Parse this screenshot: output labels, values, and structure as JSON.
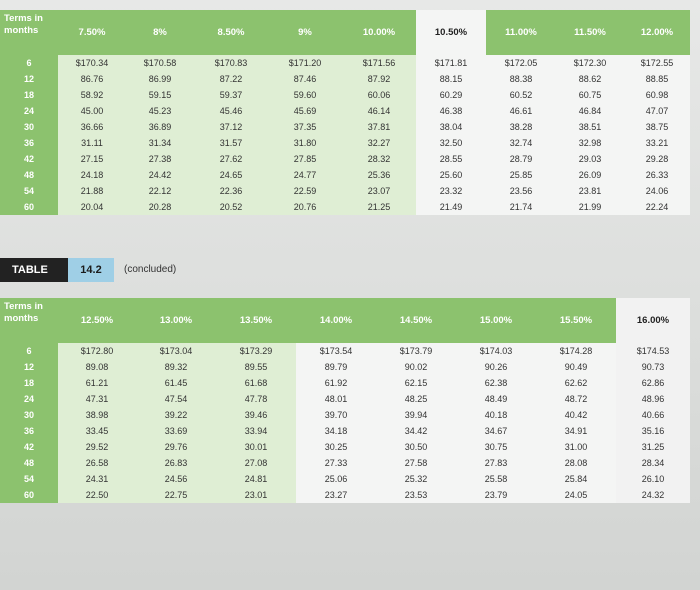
{
  "top_table": {
    "terms_header": "Terms in months",
    "rates": [
      "7.50%",
      "8%",
      "8.50%",
      "9%",
      "10.00%",
      "10.50%",
      "11.00%",
      "11.50%",
      "12.00%"
    ],
    "rows": [
      {
        "term": "6",
        "values": [
          "$170.34",
          "$170.58",
          "$170.83",
          "$171.20",
          "$171.56",
          "$171.81",
          "$172.05",
          "$172.30",
          "$172.55"
        ]
      },
      {
        "term": "12",
        "values": [
          "86.76",
          "86.99",
          "87.22",
          "87.46",
          "87.92",
          "88.15",
          "88.38",
          "88.62",
          "88.85"
        ]
      },
      {
        "term": "18",
        "values": [
          "58.92",
          "59.15",
          "59.37",
          "59.60",
          "60.06",
          "60.29",
          "60.52",
          "60.75",
          "60.98"
        ]
      },
      {
        "term": "24",
        "values": [
          "45.00",
          "45.23",
          "45.46",
          "45.69",
          "46.14",
          "46.38",
          "46.61",
          "46.84",
          "47.07"
        ]
      },
      {
        "term": "30",
        "values": [
          "36.66",
          "36.89",
          "37.12",
          "37.35",
          "37.81",
          "38.04",
          "38.28",
          "38.51",
          "38.75"
        ]
      },
      {
        "term": "36",
        "values": [
          "31.11",
          "31.34",
          "31.57",
          "31.80",
          "32.27",
          "32.50",
          "32.74",
          "32.98",
          "33.21"
        ]
      },
      {
        "term": "42",
        "values": [
          "27.15",
          "27.38",
          "27.62",
          "27.85",
          "28.32",
          "28.55",
          "28.79",
          "29.03",
          "29.28"
        ]
      },
      {
        "term": "48",
        "values": [
          "24.18",
          "24.42",
          "24.65",
          "24.77",
          "25.36",
          "25.60",
          "25.85",
          "26.09",
          "26.33"
        ]
      },
      {
        "term": "54",
        "values": [
          "21.88",
          "22.12",
          "22.36",
          "22.59",
          "23.07",
          "23.32",
          "23.56",
          "23.81",
          "24.06"
        ]
      },
      {
        "term": "60",
        "values": [
          "20.04",
          "20.28",
          "20.52",
          "20.76",
          "21.25",
          "21.49",
          "21.74",
          "21.99",
          "22.24"
        ]
      }
    ]
  },
  "caption": {
    "label": "TABLE",
    "number": "14.2",
    "note": "(concluded)"
  },
  "bottom_table": {
    "terms_header": "Terms in months",
    "rates": [
      "12.50%",
      "13.00%",
      "13.50%",
      "14.00%",
      "14.50%",
      "15.00%",
      "15.50%",
      "16.00%"
    ],
    "rows": [
      {
        "term": "6",
        "values": [
          "$172.80",
          "$173.04",
          "$173.29",
          "$173.54",
          "$173.79",
          "$174.03",
          "$174.28",
          "$174.53"
        ]
      },
      {
        "term": "12",
        "values": [
          "89.08",
          "89.32",
          "89.55",
          "89.79",
          "90.02",
          "90.26",
          "90.49",
          "90.73"
        ]
      },
      {
        "term": "18",
        "values": [
          "61.21",
          "61.45",
          "61.68",
          "61.92",
          "62.15",
          "62.38",
          "62.62",
          "62.86"
        ]
      },
      {
        "term": "24",
        "values": [
          "47.31",
          "47.54",
          "47.78",
          "48.01",
          "48.25",
          "48.49",
          "48.72",
          "48.96"
        ]
      },
      {
        "term": "30",
        "values": [
          "38.98",
          "39.22",
          "39.46",
          "39.70",
          "39.94",
          "40.18",
          "40.42",
          "40.66"
        ]
      },
      {
        "term": "36",
        "values": [
          "33.45",
          "33.69",
          "33.94",
          "34.18",
          "34.42",
          "34.67",
          "34.91",
          "35.16"
        ]
      },
      {
        "term": "42",
        "values": [
          "29.52",
          "29.76",
          "30.01",
          "30.25",
          "30.50",
          "30.75",
          "31.00",
          "31.25"
        ]
      },
      {
        "term": "48",
        "values": [
          "26.58",
          "26.83",
          "27.08",
          "27.33",
          "27.58",
          "27.83",
          "28.08",
          "28.34"
        ]
      },
      {
        "term": "54",
        "values": [
          "24.31",
          "24.56",
          "24.81",
          "25.06",
          "25.32",
          "25.58",
          "25.84",
          "26.10"
        ]
      },
      {
        "term": "60",
        "values": [
          "22.50",
          "22.75",
          "23.01",
          "23.27",
          "23.53",
          "23.79",
          "24.05",
          "24.32"
        ]
      }
    ]
  },
  "colors": {
    "header_green": "#8cc26e",
    "tint_green": "#dfeed4",
    "caption_dark": "#222222",
    "caption_blue": "#9fcfe6"
  }
}
